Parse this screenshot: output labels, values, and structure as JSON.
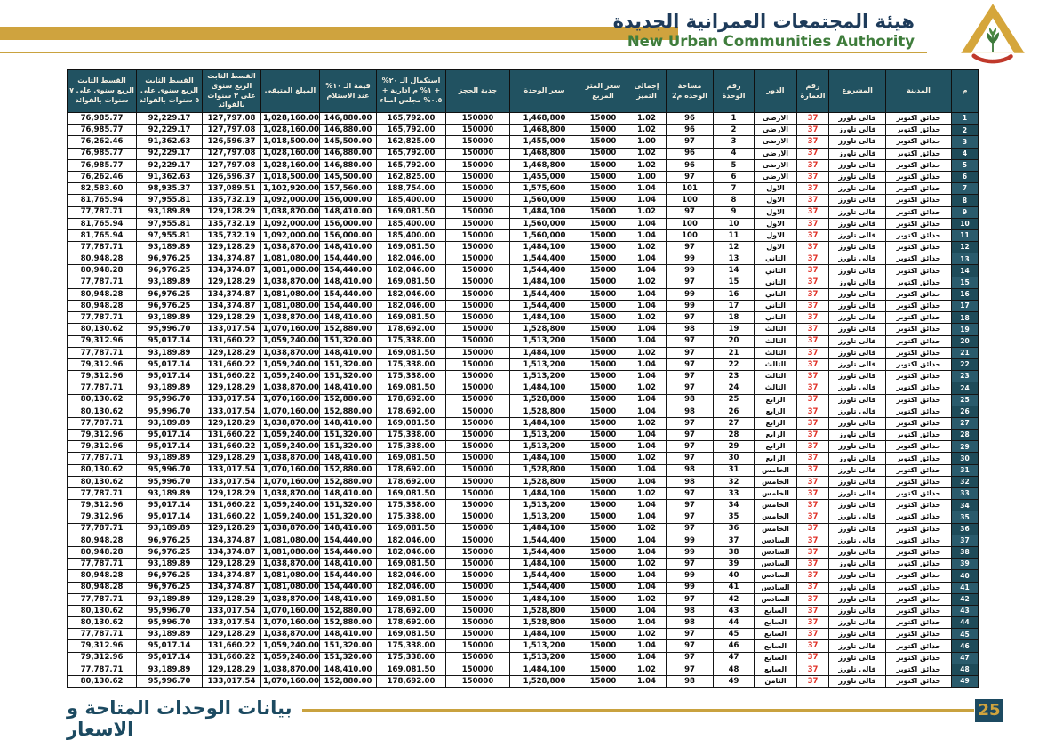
{
  "header": {
    "org_name_ar": "هيئة المجتمعات العمرانية الجديدة",
    "org_name_en": "New Urban Communities Authority",
    "logo": "nuca-pyramid-logo"
  },
  "theme": {
    "gold_accent": "#CFA33E",
    "header_teal": "#215261",
    "serial_teal": "#2A5B6C",
    "navy_title": "#1E3B5A",
    "green_title": "#3F7D3C",
    "building_red": "#E03127",
    "footer_teal": "#1C4A61"
  },
  "footer": {
    "title": "بيانات الوحدات المتاحة و الاسعار",
    "page_number": "25"
  },
  "table": {
    "columns": [
      {
        "key": "serial",
        "label": "م"
      },
      {
        "key": "city",
        "label": "المدينة"
      },
      {
        "key": "project",
        "label": "المشروع"
      },
      {
        "key": "building",
        "label": "رقم العمارة"
      },
      {
        "key": "floor",
        "label": "الدور"
      },
      {
        "key": "unit_no",
        "label": "رقم الوحدة"
      },
      {
        "key": "area",
        "label": "مساحة الوحده م2"
      },
      {
        "key": "premium",
        "label": "إجمالى التميز"
      },
      {
        "key": "sqm_price",
        "label": "سعر المتر المربع"
      },
      {
        "key": "unit_price",
        "label": "سعر الوحدة"
      },
      {
        "key": "deposit",
        "label": "جدية الحجز"
      },
      {
        "key": "completion",
        "label": "استكمال الـ ٢٠% + ١% م ادارية + ٠.٥% مجلس امناء"
      },
      {
        "key": "delivery_10",
        "label": "قيمة الـ ١٠% عند الاستلام"
      },
      {
        "key": "remaining",
        "label": "المبلغ المتبقى"
      },
      {
        "key": "inst_3y",
        "label": "القسط الثابت الربع سنوى على ٣ سنوات بالفوائد"
      },
      {
        "key": "inst_5y",
        "label": "القسط الثابت الربع سنوى على ٥ سنوات بالفوائد"
      },
      {
        "key": "inst_7y",
        "label": "القسط الثابت الربع سنوى على ٧ سنوات بالفوائد"
      }
    ],
    "constants": {
      "city": "حدائق اكتوبر",
      "project": "فالى تاورز",
      "building_no": "37",
      "sqm_price": "15000",
      "deposit": "150000"
    },
    "price_groups": {
      "A": {
        "area": "96",
        "premium": "1.02",
        "unit_price": "1,468,800",
        "completion": "165,792.00",
        "delivery_10": "146,880.00",
        "remaining": "1,028,160.00",
        "inst_3y": "127,797.08",
        "inst_5y": "92,229.17",
        "inst_7y": "76,985.77"
      },
      "B": {
        "area": "97",
        "premium": "1.00",
        "unit_price": "1,455,000",
        "completion": "162,825.00",
        "delivery_10": "145,500.00",
        "remaining": "1,018,500.00",
        "inst_3y": "126,596.37",
        "inst_5y": "91,362.63",
        "inst_7y": "76,262.46"
      },
      "C": {
        "area": "101",
        "premium": "1.04",
        "unit_price": "1,575,600",
        "completion": "188,754.00",
        "delivery_10": "157,560.00",
        "remaining": "1,102,920.00",
        "inst_3y": "137,089.51",
        "inst_5y": "98,935.37",
        "inst_7y": "82,583.60"
      },
      "D": {
        "area": "100",
        "premium": "1.04",
        "unit_price": "1,560,000",
        "completion": "185,400.00",
        "delivery_10": "156,000.00",
        "remaining": "1,092,000.00",
        "inst_3y": "135,732.19",
        "inst_5y": "97,955.81",
        "inst_7y": "81,765.94"
      },
      "E": {
        "area": "97",
        "premium": "1.02",
        "unit_price": "1,484,100",
        "completion": "169,081.50",
        "delivery_10": "148,410.00",
        "remaining": "1,038,870.00",
        "inst_3y": "129,128.29",
        "inst_5y": "93,189.89",
        "inst_7y": "77,787.71"
      },
      "F": {
        "area": "99",
        "premium": "1.04",
        "unit_price": "1,544,400",
        "completion": "182,046.00",
        "delivery_10": "154,440.00",
        "remaining": "1,081,080.00",
        "inst_3y": "134,374.87",
        "inst_5y": "96,976.25",
        "inst_7y": "80,948.28"
      },
      "G": {
        "area": "98",
        "premium": "1.04",
        "unit_price": "1,528,800",
        "completion": "178,692.00",
        "delivery_10": "152,880.00",
        "remaining": "1,070,160.00",
        "inst_3y": "133,017.54",
        "inst_5y": "95,996.70",
        "inst_7y": "80,130.62"
      },
      "H": {
        "area": "97",
        "premium": "1.04",
        "unit_price": "1,513,200",
        "completion": "175,338.00",
        "delivery_10": "151,320.00",
        "remaining": "1,059,240.00",
        "inst_3y": "131,660.22",
        "inst_5y": "95,017.14",
        "inst_7y": "79,312.96"
      }
    },
    "rows": [
      [
        "1",
        "الارضى",
        "1",
        "A"
      ],
      [
        "2",
        "الارضى",
        "2",
        "A"
      ],
      [
        "3",
        "الارضى",
        "3",
        "B"
      ],
      [
        "4",
        "الارضى",
        "4",
        "A"
      ],
      [
        "5",
        "الارضى",
        "5",
        "A"
      ],
      [
        "6",
        "الارضى",
        "6",
        "B"
      ],
      [
        "7",
        "الاول",
        "7",
        "C"
      ],
      [
        "8",
        "الاول",
        "8",
        "D"
      ],
      [
        "9",
        "الاول",
        "9",
        "E"
      ],
      [
        "10",
        "الاول",
        "10",
        "D"
      ],
      [
        "11",
        "الاول",
        "11",
        "D"
      ],
      [
        "12",
        "الاول",
        "12",
        "E"
      ],
      [
        "13",
        "الثاني",
        "13",
        "F"
      ],
      [
        "14",
        "الثاني",
        "14",
        "F"
      ],
      [
        "15",
        "الثاني",
        "15",
        "E"
      ],
      [
        "16",
        "الثاني",
        "16",
        "F"
      ],
      [
        "17",
        "الثاني",
        "17",
        "F"
      ],
      [
        "18",
        "الثاني",
        "18",
        "E"
      ],
      [
        "19",
        "الثالث",
        "19",
        "G"
      ],
      [
        "20",
        "الثالث",
        "20",
        "H"
      ],
      [
        "21",
        "الثالث",
        "21",
        "E"
      ],
      [
        "22",
        "الثالث",
        "22",
        "H"
      ],
      [
        "23",
        "الثالث",
        "23",
        "H"
      ],
      [
        "24",
        "الثالث",
        "24",
        "E"
      ],
      [
        "25",
        "الرابع",
        "25",
        "G"
      ],
      [
        "26",
        "الرابع",
        "26",
        "G"
      ],
      [
        "27",
        "الرابع",
        "27",
        "E"
      ],
      [
        "28",
        "الرابع",
        "28",
        "H"
      ],
      [
        "29",
        "الرابع",
        "29",
        "H"
      ],
      [
        "30",
        "الرابع",
        "30",
        "E"
      ],
      [
        "31",
        "الخامس",
        "31",
        "G"
      ],
      [
        "32",
        "الخامس",
        "32",
        "G"
      ],
      [
        "33",
        "الخامس",
        "33",
        "E"
      ],
      [
        "34",
        "الخامس",
        "34",
        "H"
      ],
      [
        "35",
        "الخامس",
        "35",
        "H"
      ],
      [
        "36",
        "الخامس",
        "36",
        "E"
      ],
      [
        "37",
        "السادس",
        "37",
        "F"
      ],
      [
        "38",
        "السادس",
        "38",
        "F"
      ],
      [
        "39",
        "السادس",
        "39",
        "E"
      ],
      [
        "40",
        "السادس",
        "40",
        "F"
      ],
      [
        "41",
        "السادس",
        "41",
        "F"
      ],
      [
        "42",
        "السادس",
        "42",
        "E"
      ],
      [
        "43",
        "السابع",
        "43",
        "G"
      ],
      [
        "44",
        "السابع",
        "44",
        "G"
      ],
      [
        "45",
        "السابع",
        "45",
        "E"
      ],
      [
        "46",
        "السابع",
        "46",
        "H"
      ],
      [
        "47",
        "السابع",
        "47",
        "H"
      ],
      [
        "48",
        "السابع",
        "48",
        "E"
      ],
      [
        "49",
        "الثامن",
        "49",
        "G"
      ]
    ]
  }
}
